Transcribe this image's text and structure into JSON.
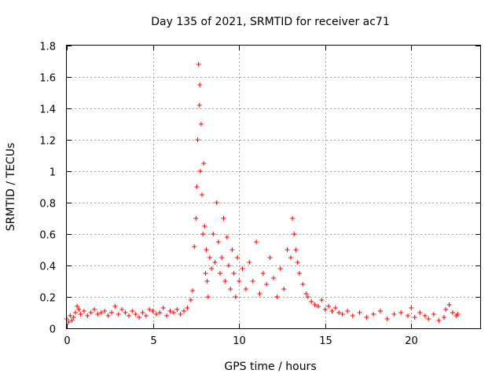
{
  "chart_data": {
    "type": "scatter",
    "title": "Day 135 of 2021, SRMTID for receiver ac71",
    "xlabel": "GPS time / hours",
    "ylabel": "SRMTID / TECUs",
    "xlim": [
      0,
      24
    ],
    "ylim": [
      0,
      1.8
    ],
    "xticks": [
      0,
      5,
      10,
      15,
      20
    ],
    "xtick_labels": [
      "0",
      "5",
      "10",
      "15",
      "20"
    ],
    "yticks": [
      0,
      0.2,
      0.4,
      0.6,
      0.8,
      1,
      1.2,
      1.4,
      1.6,
      1.8
    ],
    "ytick_labels": [
      "0",
      "0.2",
      "0.4",
      "0.6",
      "0.8",
      "1",
      "1.2",
      "1.4",
      "1.6",
      "1.8"
    ],
    "grid": true,
    "marker": "+",
    "series_color": "#ff0000",
    "series": [
      {
        "name": "ac71",
        "x": [
          0.0,
          0.1,
          0.2,
          0.3,
          0.4,
          0.5,
          0.6,
          0.7,
          0.8,
          1.0,
          1.2,
          1.4,
          1.6,
          1.8,
          2.0,
          2.2,
          2.4,
          2.6,
          2.8,
          3.0,
          3.2,
          3.4,
          3.6,
          3.8,
          4.0,
          4.2,
          4.4,
          4.6,
          4.8,
          5.0,
          5.2,
          5.4,
          5.6,
          5.8,
          6.0,
          6.2,
          6.4,
          6.6,
          6.8,
          7.0,
          7.2,
          7.3,
          7.4,
          7.5,
          7.55,
          7.6,
          7.65,
          7.7,
          7.72,
          7.75,
          7.8,
          7.85,
          7.9,
          7.95,
          8.0,
          8.05,
          8.1,
          8.15,
          8.2,
          8.3,
          8.4,
          8.5,
          8.6,
          8.7,
          8.8,
          8.9,
          9.0,
          9.1,
          9.2,
          9.3,
          9.4,
          9.5,
          9.6,
          9.7,
          9.8,
          9.9,
          10.0,
          10.2,
          10.4,
          10.6,
          10.8,
          11.0,
          11.2,
          11.4,
          11.6,
          11.8,
          12.0,
          12.2,
          12.4,
          12.6,
          12.8,
          13.0,
          13.1,
          13.2,
          13.3,
          13.4,
          13.5,
          13.7,
          13.9,
          14.0,
          14.2,
          14.4,
          14.6,
          14.8,
          15.0,
          15.2,
          15.4,
          15.6,
          15.8,
          16.0,
          16.3,
          16.6,
          17.0,
          17.4,
          17.8,
          18.2,
          18.6,
          19.0,
          19.4,
          19.8,
          20.0,
          20.2,
          20.5,
          20.8,
          21.0,
          21.3,
          21.6,
          21.9,
          22.0,
          22.2,
          22.4,
          22.6,
          22.7
        ],
        "y": [
          0.06,
          0.04,
          0.08,
          0.05,
          0.07,
          0.1,
          0.14,
          0.12,
          0.09,
          0.11,
          0.08,
          0.1,
          0.12,
          0.09,
          0.1,
          0.11,
          0.08,
          0.1,
          0.14,
          0.09,
          0.12,
          0.1,
          0.08,
          0.11,
          0.09,
          0.07,
          0.1,
          0.08,
          0.12,
          0.11,
          0.09,
          0.1,
          0.13,
          0.08,
          0.11,
          0.1,
          0.12,
          0.09,
          0.11,
          0.13,
          0.18,
          0.24,
          0.52,
          0.7,
          0.9,
          1.2,
          1.68,
          1.42,
          1.55,
          1.0,
          1.3,
          0.85,
          0.6,
          1.05,
          0.65,
          0.35,
          0.5,
          0.3,
          0.2,
          0.45,
          0.38,
          0.6,
          0.42,
          0.8,
          0.55,
          0.35,
          0.45,
          0.7,
          0.3,
          0.58,
          0.4,
          0.25,
          0.5,
          0.35,
          0.2,
          0.45,
          0.3,
          0.38,
          0.25,
          0.42,
          0.3,
          0.55,
          0.22,
          0.35,
          0.28,
          0.45,
          0.32,
          0.2,
          0.38,
          0.25,
          0.5,
          0.45,
          0.7,
          0.6,
          0.5,
          0.42,
          0.35,
          0.28,
          0.22,
          0.2,
          0.17,
          0.15,
          0.14,
          0.18,
          0.12,
          0.14,
          0.11,
          0.13,
          0.1,
          0.09,
          0.11,
          0.08,
          0.1,
          0.07,
          0.09,
          0.11,
          0.06,
          0.09,
          0.1,
          0.08,
          0.13,
          0.07,
          0.1,
          0.08,
          0.06,
          0.09,
          0.05,
          0.07,
          0.12,
          0.15,
          0.1,
          0.08,
          0.09
        ]
      }
    ]
  }
}
